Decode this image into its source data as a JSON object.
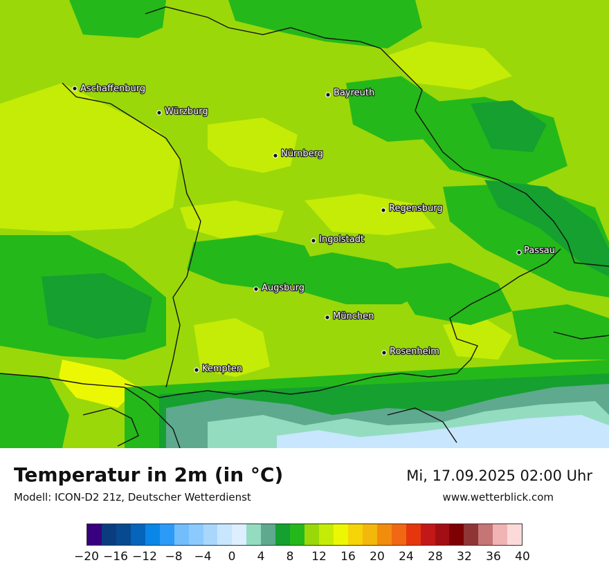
{
  "map": {
    "cities": [
      {
        "name": "Aschaffenburg"
      },
      {
        "name": "Bayreuth"
      },
      {
        "name": "Würzburg"
      },
      {
        "name": "Nürnberg"
      },
      {
        "name": "Regensburg"
      },
      {
        "name": "Ingolstadt"
      },
      {
        "name": "Passau"
      },
      {
        "name": "Augsburg"
      },
      {
        "name": "München"
      },
      {
        "name": "Rosenheim"
      },
      {
        "name": "Kempten"
      }
    ],
    "colors": {
      "temp_4": "#5fa98f",
      "temp_6": "#15a02f",
      "temp_8": "#25b81a",
      "temp_10": "#9ad80a",
      "temp_12": "#c5ec06",
      "temp_14": "#ecf803",
      "border": "#111111"
    }
  },
  "footer": {
    "title": "Temperatur in 2m (in °C)",
    "model": "Modell: ICON-D2 21z, Deutscher Wetterdienst",
    "datetime": "Mi, 17.09.2025 02:00 Uhr",
    "website": "www.wetterblick.com"
  },
  "colorbar": {
    "colors": [
      "#38007f",
      "#0a3d80",
      "#074a8f",
      "#0664ba",
      "#0a86e6",
      "#2c9bf7",
      "#72bdfc",
      "#8ccafe",
      "#a9d7fc",
      "#c8e6fd",
      "#ddeeff",
      "#93dcc0",
      "#5fa98f",
      "#15a02f",
      "#25b81a",
      "#9ad80a",
      "#c5ec06",
      "#ecf803",
      "#f5d408",
      "#f4b70b",
      "#f28c0d",
      "#f06814",
      "#e6360e",
      "#c31818",
      "#a30e15",
      "#7d0003",
      "#8f3535",
      "#c57575",
      "#f0b4b4",
      "#fcdada"
    ],
    "ticks": [
      "−20",
      "−16",
      "−12",
      "−8",
      "−4",
      "0",
      "4",
      "8",
      "12",
      "16",
      "20",
      "24",
      "28",
      "32",
      "36",
      "40"
    ],
    "min": -20,
    "max": 40
  }
}
